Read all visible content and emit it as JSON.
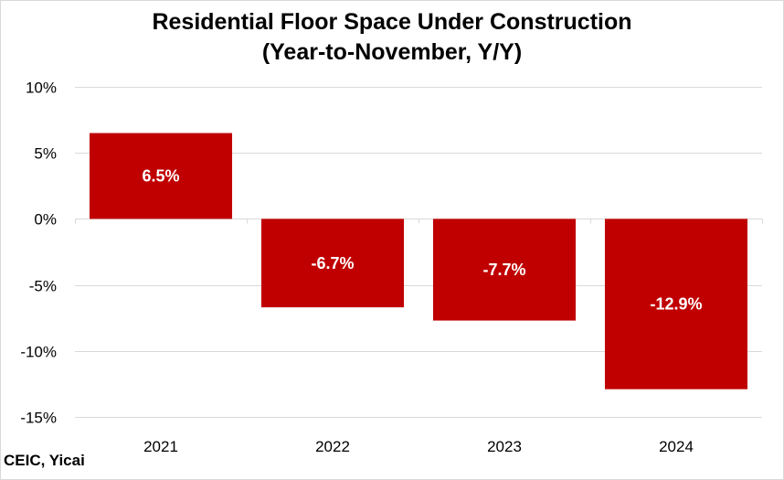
{
  "chart_data": {
    "type": "bar",
    "title_lines": [
      "Residential Floor Space Under Construction",
      "(Year-to-November, Y/Y)"
    ],
    "categories": [
      "2021",
      "2022",
      "2023",
      "2024"
    ],
    "values": [
      6.5,
      -6.7,
      -7.7,
      -12.9
    ],
    "data_labels": [
      "6.5%",
      "-6.7%",
      "-7.7%",
      "-12.9%"
    ],
    "y_ticks": [
      10,
      5,
      0,
      -5,
      -10,
      -15
    ],
    "y_tick_labels": [
      "10%",
      "5%",
      "0%",
      "-5%",
      "-10%",
      "-15%"
    ],
    "ylim": [
      -15,
      10
    ],
    "grid": true,
    "legend": false,
    "bar_color": "#c00000",
    "grid_color": "#d9d9d9"
  },
  "source": "CEIC, Yicai"
}
